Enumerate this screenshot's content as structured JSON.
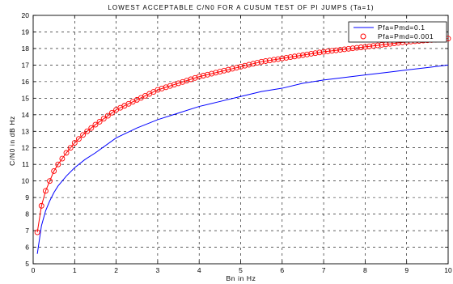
{
  "chart_data": {
    "type": "line",
    "title": "LOWEST ACCEPTABLE C/N0 FOR A CUSUM TEST OF PI JUMPS (Ta=1)",
    "xlabel": "Bn in Hz",
    "ylabel": "C/N0 in dB Hz",
    "xlim": [
      0,
      10
    ],
    "ylim": [
      5,
      20
    ],
    "xticks": [
      0,
      1,
      2,
      3,
      4,
      5,
      6,
      7,
      8,
      9,
      10
    ],
    "yticks": [
      5,
      6,
      7,
      8,
      9,
      10,
      11,
      12,
      13,
      14,
      15,
      16,
      17,
      18,
      19,
      20
    ],
    "grid": true,
    "grid_style": "dashed",
    "legend_position": "top-right",
    "series": [
      {
        "name": "Pfa=Pmd=0.1",
        "color": "#0000ff",
        "marker": "none",
        "x": [
          0.1,
          0.2,
          0.3,
          0.4,
          0.5,
          0.6,
          0.8,
          1.0,
          1.25,
          1.5,
          2.0,
          2.5,
          3.0,
          3.5,
          4.0,
          4.5,
          5.0,
          5.5,
          6.0,
          6.5,
          7.0,
          7.5,
          8.0,
          8.5,
          9.0,
          9.5,
          10.0
        ],
        "y": [
          5.6,
          7.3,
          8.2,
          8.8,
          9.3,
          9.7,
          10.3,
          10.8,
          11.3,
          11.7,
          12.6,
          13.2,
          13.7,
          14.1,
          14.5,
          14.8,
          15.1,
          15.4,
          15.6,
          15.9,
          16.1,
          16.25,
          16.4,
          16.55,
          16.7,
          16.85,
          17.0
        ]
      },
      {
        "name": "Pfa=Pmd=0.001",
        "color": "#ff0000",
        "marker": "circle",
        "x": [
          0.1,
          0.2,
          0.3,
          0.4,
          0.5,
          0.6,
          0.8,
          1.0,
          1.25,
          1.5,
          2.0,
          2.5,
          3.0,
          3.5,
          4.0,
          4.5,
          5.0,
          5.5,
          6.0,
          6.5,
          7.0,
          7.5,
          8.0,
          8.5,
          9.0,
          9.5,
          10.0
        ],
        "y": [
          6.9,
          8.5,
          9.4,
          10.0,
          10.6,
          11.0,
          11.7,
          12.3,
          12.9,
          13.4,
          14.3,
          14.9,
          15.5,
          15.9,
          16.3,
          16.6,
          16.9,
          17.2,
          17.4,
          17.6,
          17.8,
          17.95,
          18.1,
          18.25,
          18.4,
          18.5,
          18.6
        ]
      }
    ]
  }
}
